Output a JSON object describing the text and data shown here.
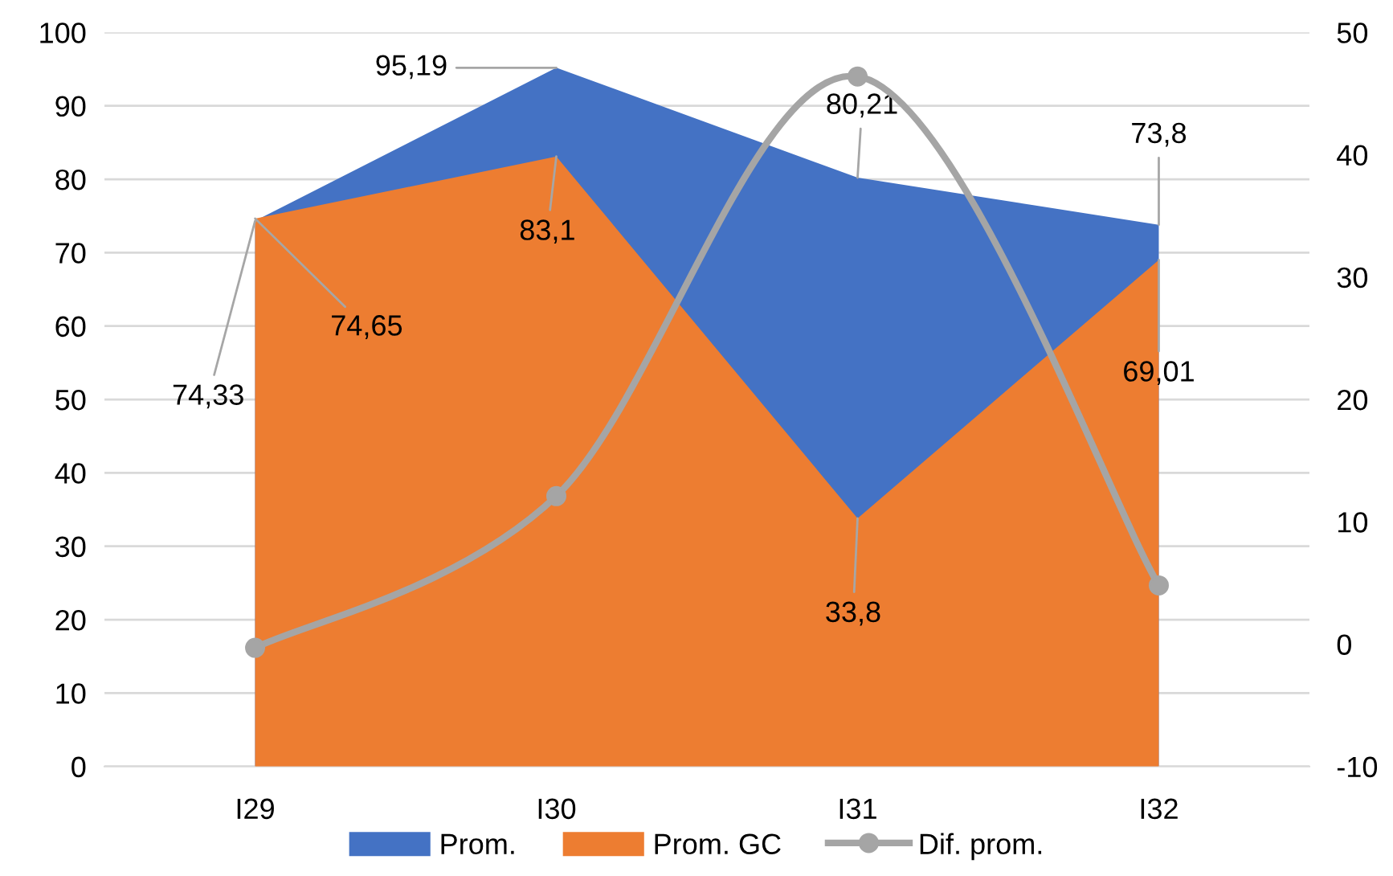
{
  "chart_data": {
    "type": "area",
    "categories": [
      "I29",
      "I30",
      "I31",
      "I32"
    ],
    "series": [
      {
        "name": "Prom.",
        "color": "#4472c4",
        "values": [
          74.33,
          95.19,
          80.21,
          73.8
        ],
        "value_labels": [
          "74,33",
          "95,19",
          "80,21",
          "73,8"
        ]
      },
      {
        "name": "Prom. GC",
        "color": "#ed7d31",
        "values": [
          74.65,
          83.1,
          33.8,
          69.01
        ],
        "value_labels": [
          "74,65",
          "83,1",
          "33,8",
          "69,01"
        ]
      },
      {
        "name": "Dif. prom.",
        "type": "line",
        "axis": "y2",
        "color": "#a5a5a5",
        "values": [
          -0.3,
          12.1,
          46.4,
          4.8
        ],
        "marker": "circle",
        "line_style": "solid"
      }
    ],
    "ylim": [
      0,
      100
    ],
    "yticks": [
      0,
      10,
      20,
      30,
      40,
      50,
      60,
      70,
      80,
      90,
      100
    ],
    "y2lim": [
      -10,
      50
    ],
    "y2ticks": [
      -10,
      0,
      10,
      20,
      30,
      40,
      50
    ],
    "grid": "y",
    "legend": "bottom"
  }
}
